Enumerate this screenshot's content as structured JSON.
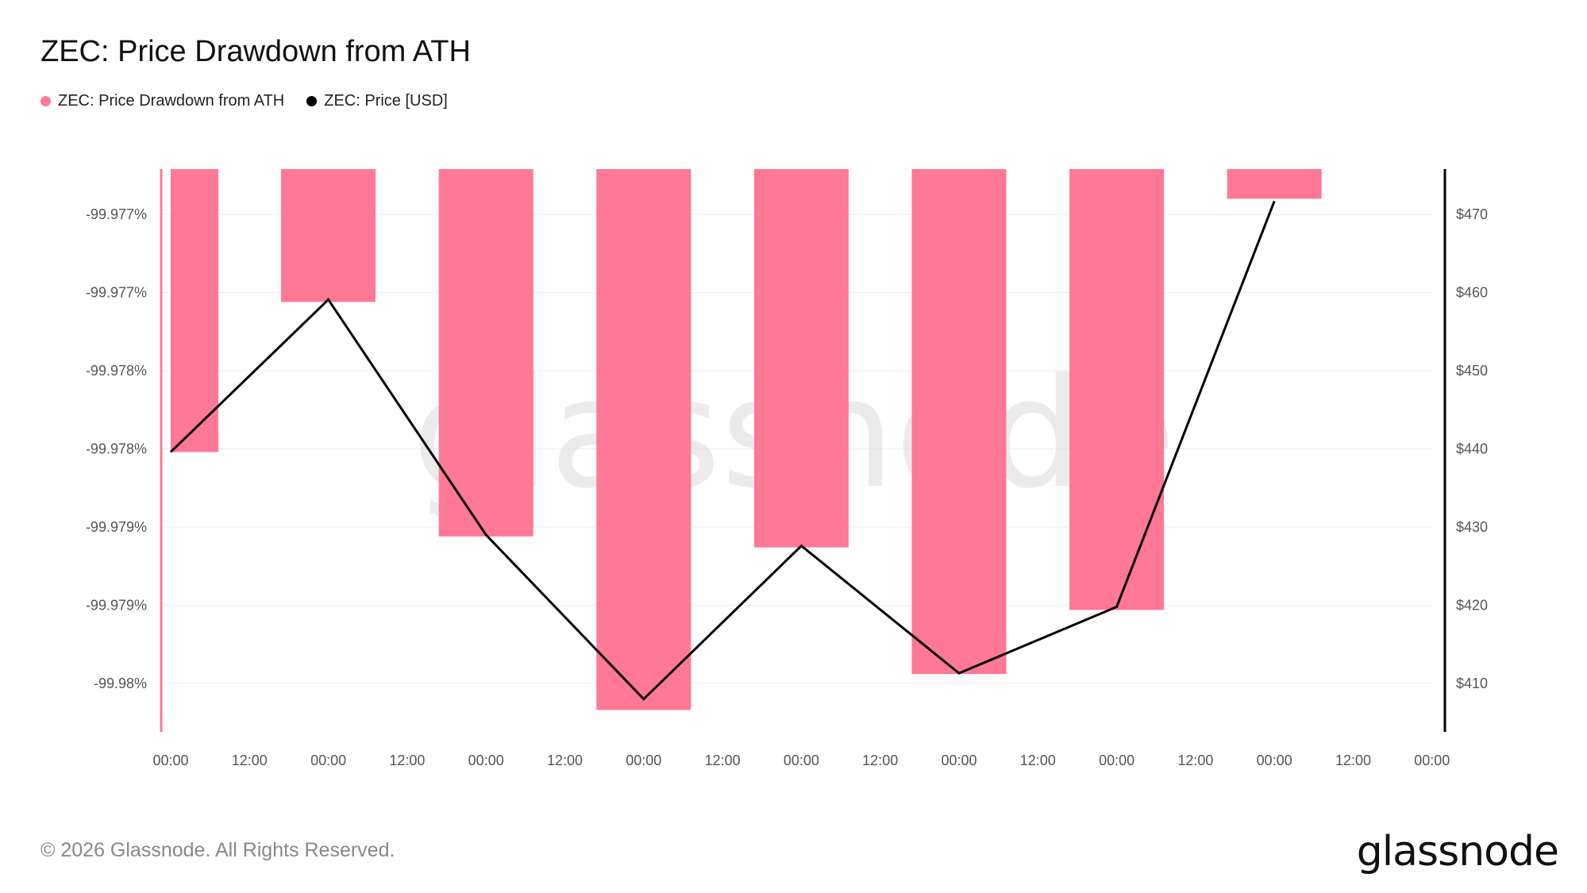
{
  "title": "ZEC: Price Drawdown from ATH",
  "legend": [
    {
      "label": "ZEC: Price Drawdown from ATH",
      "color": "#ff7896"
    },
    {
      "label": "ZEC: Price [USD]",
      "color": "#000000"
    }
  ],
  "watermark": "glassnode",
  "footer": {
    "copyright": "© 2026 Glassnode. All Rights Reserved.",
    "brand": "glassnode"
  },
  "chart_data": {
    "type": "bar",
    "x_tick_labels": [
      "00:00",
      "12:00",
      "00:00",
      "12:00",
      "00:00",
      "12:00",
      "00:00",
      "12:00",
      "00:00",
      "12:00",
      "00:00",
      "12:00",
      "00:00",
      "12:00",
      "00:00",
      "12:00",
      "00:00"
    ],
    "left_axis": {
      "tick_labels": [
        "-99.977%",
        "-99.977%",
        "-99.978%",
        "-99.978%",
        "-99.979%",
        "-99.979%",
        "-99.98%"
      ],
      "ylim": [
        -99.98031,
        -99.97671
      ]
    },
    "right_axis": {
      "tick_labels": [
        "$470",
        "$460",
        "$450",
        "$440",
        "$430",
        "$420",
        "$410"
      ],
      "ylim": [
        403.8,
        475.8
      ]
    },
    "series": [
      {
        "name": "ZEC: Price Drawdown from ATH",
        "type": "bar",
        "color": "#ff7896",
        "axis": "left",
        "values": [
          -99.97852,
          -99.97756,
          -99.97906,
          -99.98017,
          -99.97913,
          -99.97994,
          -99.97953,
          -99.9769
        ]
      },
      {
        "name": "ZEC: Price [USD]",
        "type": "line",
        "color": "#000000",
        "axis": "right",
        "values": [
          439.6,
          459.1,
          429.0,
          408.0,
          427.6,
          411.3,
          419.8,
          471.7
        ]
      }
    ],
    "grid": true,
    "legend_position": "top-left"
  }
}
